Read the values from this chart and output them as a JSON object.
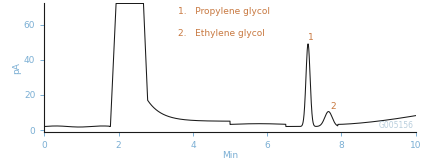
{
  "xlabel": "Min",
  "ylabel": "pA",
  "xlim": [
    0,
    10
  ],
  "ylim": [
    -1,
    72
  ],
  "yticks": [
    0,
    20,
    40,
    60
  ],
  "xticks": [
    0,
    2,
    4,
    6,
    8,
    10
  ],
  "line_color": "#1a1a1a",
  "tick_color": "#7bafd4",
  "annotation_color": "#c87941",
  "legend_items": [
    "1.   Propylene glycol",
    "2.   Ethylene glycol"
  ],
  "watermark": "G005156",
  "watermark_color": "#b8cedd",
  "figsize": [
    4.25,
    1.67
  ],
  "dpi": 100,
  "label_fontsize": 6.5,
  "legend_fontsize": 6.5,
  "watermark_fontsize": 5.5
}
